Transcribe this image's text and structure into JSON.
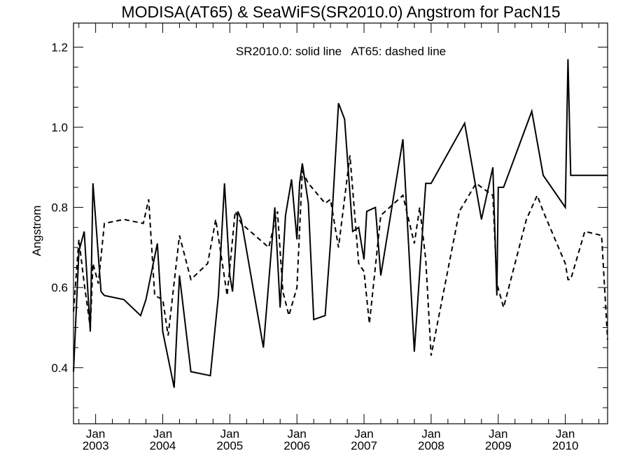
{
  "chart_data": {
    "type": "line",
    "title": "MODISA(AT65) & SeaWiFS(SR2010.0)  Angstrom for PacN15",
    "annotation": "SR2010.0: solid line   AT65: dashed line",
    "ylabel": "Angstrom",
    "xlabel": "",
    "ylim": [
      0.26,
      1.26
    ],
    "xlim": [
      2002.67,
      2010.63
    ],
    "y_ticks": [
      0.4,
      0.6,
      0.8,
      1.0,
      1.2
    ],
    "y_tick_labels": [
      "0.4",
      "0.6",
      "0.8",
      "1.0",
      "1.2"
    ],
    "x_ticks": [
      {
        "x": 2003.0,
        "line1": "Jan",
        "line2": "2003"
      },
      {
        "x": 2004.0,
        "line1": "Jan",
        "line2": "2004"
      },
      {
        "x": 2005.0,
        "line1": "Jan",
        "line2": "2005"
      },
      {
        "x": 2006.0,
        "line1": "Jan",
        "line2": "2006"
      },
      {
        "x": 2007.0,
        "line1": "Jan",
        "line2": "2007"
      },
      {
        "x": 2008.0,
        "line1": "Jan",
        "line2": "2008"
      },
      {
        "x": 2009.0,
        "line1": "Jan",
        "line2": "2009"
      },
      {
        "x": 2010.0,
        "line1": "Jan",
        "line2": "2010"
      }
    ],
    "grid": false,
    "series": [
      {
        "name": "SR2010.0",
        "style": "solid",
        "color": "#000000",
        "x": [
          2002.67,
          2002.75,
          2002.83,
          2002.92,
          2002.96,
          2003.08,
          2003.13,
          2003.42,
          2003.67,
          2003.75,
          2003.92,
          2004.0,
          2004.17,
          2004.25,
          2004.42,
          2004.71,
          2004.83,
          2004.92,
          2005.0,
          2005.04,
          2005.12,
          2005.17,
          2005.5,
          2005.67,
          2005.75,
          2005.83,
          2005.92,
          2006.0,
          2006.04,
          2006.08,
          2006.17,
          2006.25,
          2006.42,
          2006.5,
          2006.62,
          2006.71,
          2006.83,
          2006.92,
          2007.0,
          2007.04,
          2007.17,
          2007.25,
          2007.58,
          2007.75,
          2007.92,
          2008.0,
          2008.5,
          2008.75,
          2008.92,
          2008.98,
          2009.0,
          2009.08,
          2009.5,
          2009.67,
          2010.0,
          2010.04,
          2010.08,
          2010.29,
          2010.54,
          2010.63
        ],
        "y": [
          0.39,
          0.69,
          0.74,
          0.49,
          0.86,
          0.59,
          0.58,
          0.57,
          0.53,
          0.57,
          0.71,
          0.49,
          0.35,
          0.63,
          0.39,
          0.38,
          0.58,
          0.86,
          0.63,
          0.59,
          0.79,
          0.77,
          0.45,
          0.8,
          0.55,
          0.78,
          0.87,
          0.72,
          0.86,
          0.91,
          0.81,
          0.52,
          0.53,
          0.71,
          1.06,
          1.02,
          0.74,
          0.75,
          0.67,
          0.79,
          0.8,
          0.63,
          0.97,
          0.44,
          0.86,
          0.86,
          1.01,
          0.77,
          0.9,
          0.58,
          0.85,
          0.85,
          1.04,
          0.88,
          0.8,
          1.17,
          0.88,
          0.88,
          0.88,
          0.88
        ]
      },
      {
        "name": "AT65",
        "style": "dashed",
        "color": "#000000",
        "x": [
          2002.67,
          2002.75,
          2002.83,
          2002.92,
          2002.96,
          2003.04,
          2003.13,
          2003.42,
          2003.71,
          2003.79,
          2003.88,
          2004.0,
          2004.08,
          2004.25,
          2004.42,
          2004.67,
          2004.79,
          2004.96,
          2005.0,
          2005.08,
          2005.17,
          2005.58,
          2005.71,
          2005.79,
          2005.88,
          2006.0,
          2006.08,
          2006.17,
          2006.42,
          2006.5,
          2006.62,
          2006.79,
          2006.92,
          2007.0,
          2007.08,
          2007.25,
          2007.58,
          2007.75,
          2007.83,
          2007.92,
          2008.0,
          2008.42,
          2008.67,
          2008.92,
          2008.98,
          2009.08,
          2009.42,
          2009.58,
          2009.67,
          2010.0,
          2010.04,
          2010.08,
          2010.29,
          2010.54,
          2010.63
        ],
        "y": [
          0.54,
          0.72,
          0.61,
          0.5,
          0.66,
          0.61,
          0.76,
          0.77,
          0.76,
          0.82,
          0.58,
          0.57,
          0.48,
          0.73,
          0.62,
          0.66,
          0.77,
          0.58,
          0.65,
          0.79,
          0.76,
          0.7,
          0.79,
          0.59,
          0.53,
          0.6,
          0.89,
          0.86,
          0.81,
          0.82,
          0.7,
          0.93,
          0.66,
          0.64,
          0.51,
          0.78,
          0.83,
          0.71,
          0.8,
          0.67,
          0.43,
          0.79,
          0.86,
          0.83,
          0.61,
          0.55,
          0.77,
          0.83,
          0.79,
          0.66,
          0.62,
          0.62,
          0.74,
          0.73,
          0.47
        ]
      }
    ]
  }
}
